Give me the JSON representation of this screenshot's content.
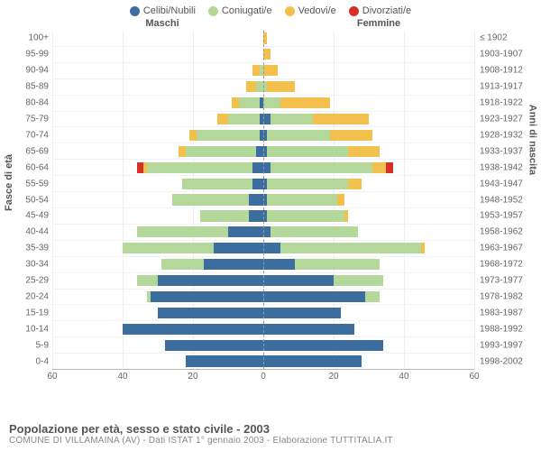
{
  "legend": [
    {
      "label": "Celibi/Nubili",
      "color": "#3b6e9e"
    },
    {
      "label": "Coniugati/e",
      "color": "#b4d89a"
    },
    {
      "label": "Vedovi/e",
      "color": "#f3c04e"
    },
    {
      "label": "Divorziati/e",
      "color": "#d73027"
    }
  ],
  "headers": {
    "left": "Maschi",
    "right": "Femmine"
  },
  "axes": {
    "y_left_title": "Fasce di età",
    "y_right_title": "Anni di nascita",
    "x_max": 60,
    "x_ticks": [
      60,
      40,
      20,
      0,
      20,
      40,
      60
    ],
    "x_tick_positions_pct": [
      0,
      16.67,
      33.33,
      50,
      66.67,
      83.33,
      100
    ]
  },
  "caption": {
    "title": "Popolazione per età, sesso e stato civile - 2003",
    "sub": "COMUNE DI VILLAMAINA (AV) - Dati ISTAT 1° gennaio 2003 - Elaborazione TUTTITALIA.IT"
  },
  "rows": [
    {
      "age": "100+",
      "birth": "≤ 1902",
      "m": {
        "cel": 0,
        "con": 0,
        "ved": 0,
        "div": 0
      },
      "f": {
        "cel": 0,
        "con": 0,
        "ved": 1,
        "div": 0
      }
    },
    {
      "age": "95-99",
      "birth": "1903-1907",
      "m": {
        "cel": 0,
        "con": 0,
        "ved": 0,
        "div": 0
      },
      "f": {
        "cel": 0,
        "con": 0,
        "ved": 2,
        "div": 0
      }
    },
    {
      "age": "90-94",
      "birth": "1908-1912",
      "m": {
        "cel": 0,
        "con": 1,
        "ved": 2,
        "div": 0
      },
      "f": {
        "cel": 0,
        "con": 0,
        "ved": 4,
        "div": 0
      }
    },
    {
      "age": "85-89",
      "birth": "1913-1917",
      "m": {
        "cel": 0,
        "con": 2,
        "ved": 3,
        "div": 0
      },
      "f": {
        "cel": 0,
        "con": 1,
        "ved": 8,
        "div": 0
      }
    },
    {
      "age": "80-84",
      "birth": "1918-1922",
      "m": {
        "cel": 1,
        "con": 6,
        "ved": 2,
        "div": 0
      },
      "f": {
        "cel": 0,
        "con": 5,
        "ved": 14,
        "div": 0
      }
    },
    {
      "age": "75-79",
      "birth": "1923-1927",
      "m": {
        "cel": 1,
        "con": 9,
        "ved": 3,
        "div": 0
      },
      "f": {
        "cel": 2,
        "con": 12,
        "ved": 16,
        "div": 0
      }
    },
    {
      "age": "70-74",
      "birth": "1928-1932",
      "m": {
        "cel": 1,
        "con": 18,
        "ved": 2,
        "div": 0
      },
      "f": {
        "cel": 1,
        "con": 18,
        "ved": 12,
        "div": 0
      }
    },
    {
      "age": "65-69",
      "birth": "1933-1937",
      "m": {
        "cel": 2,
        "con": 20,
        "ved": 2,
        "div": 0
      },
      "f": {
        "cel": 1,
        "con": 23,
        "ved": 9,
        "div": 0
      }
    },
    {
      "age": "60-64",
      "birth": "1938-1942",
      "m": {
        "cel": 3,
        "con": 30,
        "ved": 1,
        "div": 2
      },
      "f": {
        "cel": 2,
        "con": 29,
        "ved": 4,
        "div": 2
      }
    },
    {
      "age": "55-59",
      "birth": "1943-1947",
      "m": {
        "cel": 3,
        "con": 20,
        "ved": 0,
        "div": 0
      },
      "f": {
        "cel": 1,
        "con": 23,
        "ved": 4,
        "div": 0
      }
    },
    {
      "age": "50-54",
      "birth": "1948-1952",
      "m": {
        "cel": 4,
        "con": 22,
        "ved": 0,
        "div": 0
      },
      "f": {
        "cel": 1,
        "con": 20,
        "ved": 2,
        "div": 0
      }
    },
    {
      "age": "45-49",
      "birth": "1953-1957",
      "m": {
        "cel": 4,
        "con": 14,
        "ved": 0,
        "div": 0
      },
      "f": {
        "cel": 1,
        "con": 22,
        "ved": 1,
        "div": 0
      }
    },
    {
      "age": "40-44",
      "birth": "1958-1962",
      "m": {
        "cel": 10,
        "con": 26,
        "ved": 0,
        "div": 0
      },
      "f": {
        "cel": 2,
        "con": 25,
        "ved": 0,
        "div": 0
      }
    },
    {
      "age": "35-39",
      "birth": "1963-1967",
      "m": {
        "cel": 14,
        "con": 26,
        "ved": 0,
        "div": 0
      },
      "f": {
        "cel": 5,
        "con": 40,
        "ved": 1,
        "div": 0
      }
    },
    {
      "age": "30-34",
      "birth": "1968-1972",
      "m": {
        "cel": 17,
        "con": 12,
        "ved": 0,
        "div": 0
      },
      "f": {
        "cel": 9,
        "con": 24,
        "ved": 0,
        "div": 0
      }
    },
    {
      "age": "25-29",
      "birth": "1973-1977",
      "m": {
        "cel": 30,
        "con": 6,
        "ved": 0,
        "div": 0
      },
      "f": {
        "cel": 20,
        "con": 14,
        "ved": 0,
        "div": 0
      }
    },
    {
      "age": "20-24",
      "birth": "1978-1982",
      "m": {
        "cel": 32,
        "con": 1,
        "ved": 0,
        "div": 0
      },
      "f": {
        "cel": 29,
        "con": 4,
        "ved": 0,
        "div": 0
      }
    },
    {
      "age": "15-19",
      "birth": "1983-1987",
      "m": {
        "cel": 30,
        "con": 0,
        "ved": 0,
        "div": 0
      },
      "f": {
        "cel": 22,
        "con": 0,
        "ved": 0,
        "div": 0
      }
    },
    {
      "age": "10-14",
      "birth": "1988-1992",
      "m": {
        "cel": 40,
        "con": 0,
        "ved": 0,
        "div": 0
      },
      "f": {
        "cel": 26,
        "con": 0,
        "ved": 0,
        "div": 0
      }
    },
    {
      "age": "5-9",
      "birth": "1993-1997",
      "m": {
        "cel": 28,
        "con": 0,
        "ved": 0,
        "div": 0
      },
      "f": {
        "cel": 34,
        "con": 0,
        "ved": 0,
        "div": 0
      }
    },
    {
      "age": "0-4",
      "birth": "1998-2002",
      "m": {
        "cel": 22,
        "con": 0,
        "ved": 0,
        "div": 0
      },
      "f": {
        "cel": 28,
        "con": 0,
        "ved": 0,
        "div": 0
      }
    }
  ],
  "style": {
    "background": "#ffffff",
    "grid_color": "#eeeeee",
    "center_line": "#999999",
    "font": "Arial",
    "legend_fontsize": 11,
    "axis_fontsize": 10,
    "title_fontsize": 13
  }
}
